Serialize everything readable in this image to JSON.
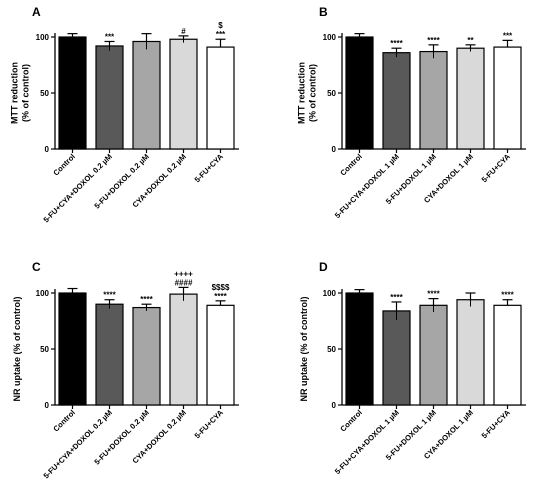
{
  "chart_data": [
    {
      "panel_label": "A",
      "type": "bar",
      "ylabel_lines": [
        "MTT reduction",
        "(% of control)"
      ],
      "ylim": [
        0,
        100
      ],
      "yticks": [
        0,
        50,
        100
      ],
      "categories": [
        "Control",
        "5-FU+CYA+DOXOL 0.2 µM",
        "5-FU+DOXOL 0.2 µM",
        "CYA+DOXOL 0.2 µM",
        "5-FU+CYA"
      ],
      "values": [
        100,
        92,
        96,
        98,
        91
      ],
      "errors": [
        3,
        4,
        7,
        3,
        7
      ],
      "bar_colors": [
        "#000000",
        "#595959",
        "#a6a6a6",
        "#d9d9d9",
        "#ffffff"
      ],
      "significance": [
        [],
        [
          "***"
        ],
        [],
        [
          "#"
        ],
        [
          "$",
          "***"
        ]
      ]
    },
    {
      "panel_label": "B",
      "type": "bar",
      "ylabel_lines": [
        "MTT reduction",
        "(% of control)"
      ],
      "ylim": [
        0,
        100
      ],
      "yticks": [
        0,
        50,
        100
      ],
      "categories": [
        "Control",
        "5-FU+CYA+DOXOL  1 µM",
        "5-FU+DOXOL  1 µM",
        "CYA+DOXOL  1 µM",
        "5-FU+CYA"
      ],
      "values": [
        100,
        86,
        87,
        90,
        91
      ],
      "errors": [
        3,
        4,
        6,
        3,
        6
      ],
      "bar_colors": [
        "#000000",
        "#595959",
        "#a6a6a6",
        "#d9d9d9",
        "#ffffff"
      ],
      "significance": [
        [],
        [
          "****"
        ],
        [
          "****"
        ],
        [
          "**"
        ],
        [
          "***"
        ]
      ]
    },
    {
      "panel_label": "C",
      "type": "bar",
      "ylabel_lines": [
        "NR uptake (% of control)"
      ],
      "ylim": [
        0,
        100
      ],
      "yticks": [
        0,
        50,
        100
      ],
      "categories": [
        "Control",
        "5-FU+CYA+DOXOL 0.2 µM",
        "5-FU+DOXOL 0.2 µM",
        "CYA+DOXOL 0.2 µM",
        "5-FU+CYA"
      ],
      "values": [
        100,
        90,
        87,
        99,
        89
      ],
      "errors": [
        4,
        4,
        3,
        6,
        4
      ],
      "bar_colors": [
        "#000000",
        "#595959",
        "#a6a6a6",
        "#d9d9d9",
        "#ffffff"
      ],
      "significance": [
        [],
        [
          "****"
        ],
        [
          "****"
        ],
        [
          "++++",
          "####"
        ],
        [
          "$$$$",
          "****"
        ]
      ]
    },
    {
      "panel_label": "D",
      "type": "bar",
      "ylabel_lines": [
        "NR uptake (% of control)"
      ],
      "ylim": [
        0,
        100
      ],
      "yticks": [
        0,
        50,
        100
      ],
      "categories": [
        "Control",
        "5-FU+CYA+DOXOL 1 µM",
        "5-FU+DOXOL 1 µM",
        "CYA+DOXOL  1 µM",
        "5-FU+CYA"
      ],
      "values": [
        100,
        84,
        89,
        94,
        89
      ],
      "errors": [
        3,
        8,
        6,
        6,
        5
      ],
      "bar_colors": [
        "#000000",
        "#595959",
        "#a6a6a6",
        "#d9d9d9",
        "#ffffff"
      ],
      "significance": [
        [],
        [
          "****"
        ],
        [
          "****"
        ],
        [],
        [
          "****"
        ]
      ]
    }
  ]
}
